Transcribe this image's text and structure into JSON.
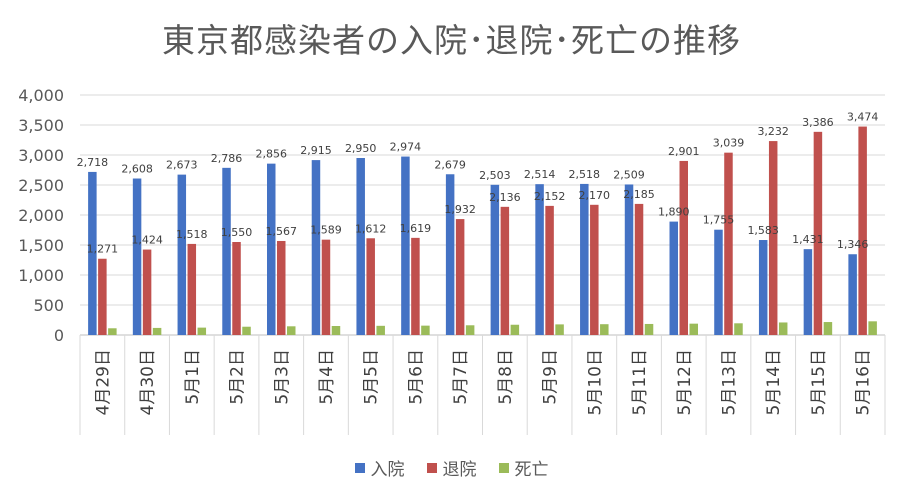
{
  "chart_data": {
    "type": "bar",
    "title": "東京都感染者の入院･退院･死亡の推移",
    "categories": [
      "4月29日",
      "4月30日",
      "5月1日",
      "5月2日",
      "5月3日",
      "5月4日",
      "5月5日",
      "5月6日",
      "5月7日",
      "5月8日",
      "5月9日",
      "5月10日",
      "5月11日",
      "5月12日",
      "5月13日",
      "5月14日",
      "5月15日",
      "5月16日"
    ],
    "series": [
      {
        "name": "入院",
        "color": "#4472C4",
        "values": [
          2718,
          2608,
          2673,
          2786,
          2856,
          2915,
          2950,
          2974,
          2679,
          2503,
          2514,
          2518,
          2509,
          1890,
          1755,
          1583,
          1431,
          1346
        ],
        "labels": [
          "2,718",
          "2,608",
          "2,673",
          "2,786",
          "2,856",
          "2,915",
          "2,950",
          "2,974",
          "2,679",
          "2,503",
          "2,514",
          "2,518",
          "2,509",
          "1,890",
          "1,755",
          "1,583",
          "1,431",
          "1,346"
        ]
      },
      {
        "name": "退院",
        "color": "#C0504D",
        "values": [
          1271,
          1424,
          1518,
          1550,
          1567,
          1589,
          1612,
          1619,
          1932,
          2136,
          2152,
          2170,
          2185,
          2901,
          3039,
          3232,
          3386,
          3474
        ],
        "labels": [
          "1,271",
          "1,424",
          "1,518",
          "1,550",
          "1,567",
          "1,589",
          "1,612",
          "1,619",
          "1,932",
          "2,136",
          "2,152",
          "2,170",
          "2,185",
          "2,901",
          "3,039",
          "3,232",
          "3,386",
          "3,474"
        ]
      },
      {
        "name": "死亡",
        "color": "#9BBB59",
        "values": [
          112,
          118,
          123,
          138,
          145,
          150,
          153,
          156,
          162,
          171,
          177,
          180,
          184,
          189,
          195,
          209,
          216,
          228
        ],
        "labels": []
      }
    ],
    "yticks": [
      "0",
      "500",
      "1,000",
      "1,500",
      "2,000",
      "2,500",
      "3,000",
      "3,500",
      "4,000"
    ],
    "ylim": [
      0,
      4000
    ],
    "grid": true,
    "legend": "bottom"
  }
}
